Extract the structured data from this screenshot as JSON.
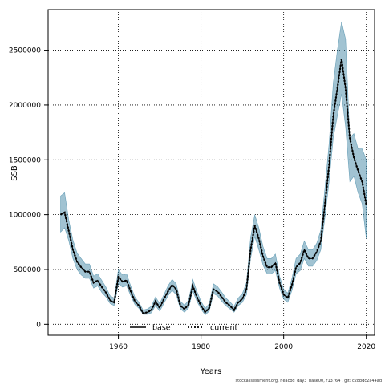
{
  "chart_data": {
    "type": "line",
    "xlabel": "Years",
    "ylabel": "SSB",
    "xlim": [
      1943,
      2022
    ],
    "ylim": [
      -100000,
      2870000
    ],
    "xticks": [
      1960,
      1980,
      2000,
      2020
    ],
    "yticks": [
      0,
      500000,
      1000000,
      1500000,
      2000000,
      2500000
    ],
    "grid": true,
    "legend": {
      "placement": "bottom-center",
      "entries": [
        {
          "label": "base",
          "style": "solid",
          "color": "#000000"
        },
        {
          "label": "current",
          "style": "dotted",
          "color": "#000000"
        }
      ]
    },
    "band_color": "#2e7b9c",
    "x": [
      1946,
      1947,
      1948,
      1949,
      1950,
      1951,
      1952,
      1953,
      1954,
      1955,
      1956,
      1957,
      1958,
      1959,
      1960,
      1961,
      1962,
      1963,
      1964,
      1965,
      1966,
      1967,
      1968,
      1969,
      1970,
      1971,
      1972,
      1973,
      1974,
      1975,
      1976,
      1977,
      1978,
      1979,
      1980,
      1981,
      1982,
      1983,
      1984,
      1985,
      1986,
      1987,
      1988,
      1989,
      1990,
      1991,
      1992,
      1993,
      1994,
      1995,
      1996,
      1997,
      1998,
      1999,
      2000,
      2001,
      2002,
      2003,
      2004,
      2005,
      2006,
      2007,
      2008,
      2009,
      2010,
      2011,
      2012,
      2013,
      2014,
      2015,
      2016,
      2017,
      2018,
      2019,
      2020
    ],
    "series": [
      {
        "name": "current",
        "values": [
          1000000,
          1020000,
          850000,
          680000,
          570000,
          520000,
          480000,
          480000,
          380000,
          400000,
          340000,
          290000,
          220000,
          200000,
          430000,
          390000,
          400000,
          300000,
          210000,
          170000,
          100000,
          110000,
          130000,
          210000,
          150000,
          230000,
          300000,
          360000,
          320000,
          170000,
          140000,
          180000,
          350000,
          250000,
          170000,
          110000,
          150000,
          320000,
          300000,
          250000,
          200000,
          170000,
          130000,
          200000,
          230000,
          320000,
          680000,
          900000,
          780000,
          620000,
          520000,
          520000,
          560000,
          380000,
          270000,
          240000,
          360000,
          520000,
          560000,
          680000,
          600000,
          600000,
          660000,
          760000,
          1100000,
          1450000,
          1900000,
          2150000,
          2420000,
          2150000,
          1700000,
          1520000,
          1400000,
          1300000,
          1090000
        ]
      },
      {
        "name": "upper",
        "values": [
          1170000,
          1200000,
          950000,
          770000,
          650000,
          600000,
          550000,
          550000,
          440000,
          460000,
          400000,
          340000,
          260000,
          240000,
          500000,
          450000,
          460000,
          350000,
          250000,
          200000,
          130000,
          140000,
          165000,
          250000,
          190000,
          270000,
          350000,
          410000,
          370000,
          210000,
          175000,
          220000,
          410000,
          300000,
          210000,
          145000,
          190000,
          370000,
          345000,
          295000,
          240000,
          205000,
          165000,
          240000,
          280000,
          380000,
          790000,
          1000000,
          880000,
          710000,
          600000,
          600000,
          640000,
          440000,
          320000,
          285000,
          420000,
          600000,
          640000,
          760000,
          680000,
          680000,
          740000,
          860000,
          1250000,
          1650000,
          2200000,
          2500000,
          2760000,
          2600000,
          1700000,
          1740000,
          1600000,
          1600000,
          1500000
        ]
      },
      {
        "name": "lower",
        "values": [
          840000,
          880000,
          760000,
          600000,
          500000,
          450000,
          420000,
          420000,
          330000,
          350000,
          290000,
          250000,
          190000,
          170000,
          370000,
          340000,
          350000,
          260000,
          180000,
          145000,
          90000,
          90000,
          105000,
          170000,
          120000,
          190000,
          260000,
          310000,
          270000,
          140000,
          110000,
          150000,
          300000,
          210000,
          140000,
          85000,
          120000,
          280000,
          260000,
          210000,
          170000,
          140000,
          110000,
          170000,
          200000,
          270000,
          600000,
          800000,
          680000,
          540000,
          460000,
          460000,
          490000,
          330000,
          230000,
          200000,
          310000,
          460000,
          490000,
          600000,
          530000,
          530000,
          580000,
          680000,
          980000,
          1300000,
          1700000,
          1900000,
          2100000,
          1800000,
          1300000,
          1350000,
          1200000,
          1100000,
          780000
        ]
      }
    ]
  },
  "footer": "stockassessment.org,  neacod_day3_base00,  r13764 ,  git: c28bdc2a44ad"
}
